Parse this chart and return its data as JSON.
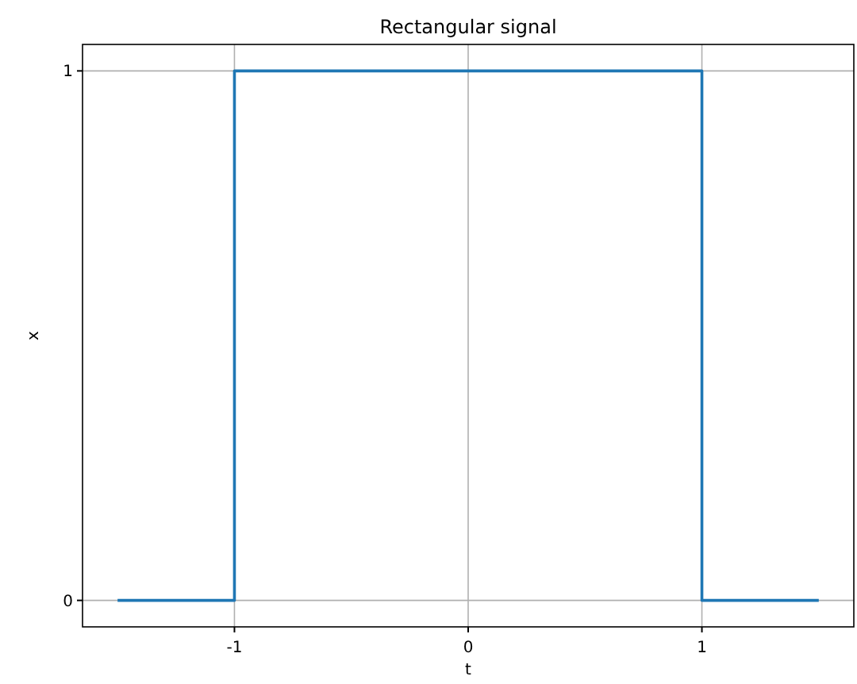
{
  "chart_data": {
    "type": "line",
    "title": "Rectangular signal",
    "xlabel": "t",
    "ylabel": "x",
    "series": [
      {
        "color": "#1f77b4",
        "x": [
          -1.5,
          -1,
          -1,
          1,
          1,
          1.5
        ],
        "values": [
          0,
          0,
          1,
          1,
          0,
          0
        ]
      }
    ],
    "xlim": [
      -1.65,
      1.65
    ],
    "ylim": [
      -0.05,
      1.05
    ],
    "xticks": [
      -1,
      0,
      1
    ],
    "yticks": [
      0,
      1
    ],
    "grid": true,
    "marker": "none",
    "line_style": "solid"
  }
}
